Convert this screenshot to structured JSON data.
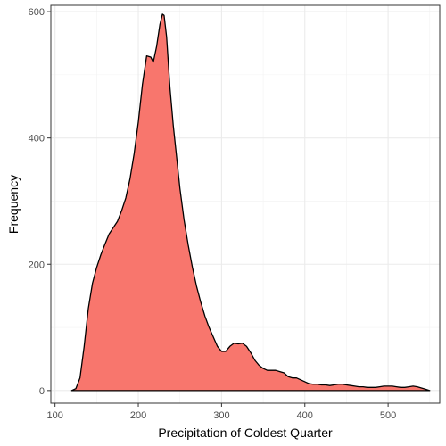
{
  "chart_data": {
    "type": "area",
    "xlabel": "Precipitation of Coldest Quarter",
    "ylabel": "Frequency",
    "xlim": [
      95,
      562
    ],
    "ylim": [
      -20,
      610
    ],
    "grid": true,
    "x_ticks": [
      100,
      200,
      300,
      400,
      500
    ],
    "y_ticks": [
      0,
      200,
      400,
      600
    ],
    "series": [
      {
        "fill": "#f8766d",
        "stroke": "#000000",
        "points": [
          [
            120,
            0
          ],
          [
            125,
            3
          ],
          [
            130,
            20
          ],
          [
            135,
            70
          ],
          [
            140,
            130
          ],
          [
            145,
            170
          ],
          [
            150,
            195
          ],
          [
            155,
            215
          ],
          [
            160,
            232
          ],
          [
            165,
            248
          ],
          [
            170,
            258
          ],
          [
            175,
            268
          ],
          [
            180,
            285
          ],
          [
            185,
            305
          ],
          [
            190,
            335
          ],
          [
            195,
            375
          ],
          [
            200,
            425
          ],
          [
            205,
            485
          ],
          [
            210,
            530
          ],
          [
            215,
            528
          ],
          [
            218,
            520
          ],
          [
            222,
            545
          ],
          [
            226,
            580
          ],
          [
            229,
            596
          ],
          [
            231,
            594
          ],
          [
            234,
            560
          ],
          [
            238,
            480
          ],
          [
            242,
            420
          ],
          [
            246,
            370
          ],
          [
            250,
            320
          ],
          [
            255,
            270
          ],
          [
            260,
            230
          ],
          [
            265,
            195
          ],
          [
            270,
            165
          ],
          [
            275,
            140
          ],
          [
            280,
            118
          ],
          [
            285,
            100
          ],
          [
            290,
            85
          ],
          [
            295,
            70
          ],
          [
            300,
            62
          ],
          [
            305,
            62
          ],
          [
            310,
            70
          ],
          [
            315,
            75
          ],
          [
            320,
            74
          ],
          [
            325,
            75
          ],
          [
            330,
            70
          ],
          [
            335,
            60
          ],
          [
            340,
            48
          ],
          [
            345,
            40
          ],
          [
            350,
            35
          ],
          [
            355,
            32
          ],
          [
            360,
            32
          ],
          [
            365,
            32
          ],
          [
            370,
            30
          ],
          [
            375,
            28
          ],
          [
            380,
            22
          ],
          [
            385,
            20
          ],
          [
            390,
            20
          ],
          [
            395,
            17
          ],
          [
            400,
            14
          ],
          [
            405,
            11
          ],
          [
            410,
            10
          ],
          [
            415,
            10
          ],
          [
            420,
            9
          ],
          [
            425,
            9
          ],
          [
            430,
            8
          ],
          [
            435,
            9
          ],
          [
            440,
            10
          ],
          [
            445,
            10
          ],
          [
            450,
            9
          ],
          [
            455,
            8
          ],
          [
            460,
            7
          ],
          [
            465,
            6
          ],
          [
            470,
            6
          ],
          [
            475,
            5
          ],
          [
            480,
            5
          ],
          [
            485,
            5
          ],
          [
            490,
            6
          ],
          [
            495,
            7
          ],
          [
            500,
            7
          ],
          [
            505,
            7
          ],
          [
            510,
            6
          ],
          [
            515,
            5
          ],
          [
            520,
            5
          ],
          [
            525,
            6
          ],
          [
            530,
            7
          ],
          [
            535,
            6
          ],
          [
            540,
            4
          ],
          [
            545,
            2
          ],
          [
            550,
            0
          ]
        ]
      }
    ]
  }
}
